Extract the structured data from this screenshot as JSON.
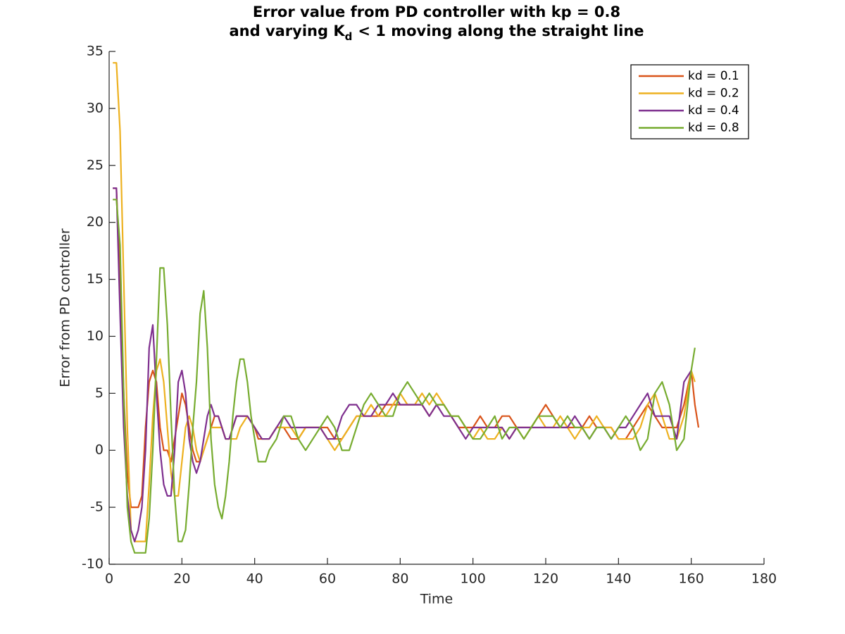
{
  "chart_data": {
    "type": "line",
    "title": {
      "line1": "Error value from PD controller with kp = 0.8",
      "line2": [
        "and varying K",
        "d",
        "< 1 moving along the straight line"
      ]
    },
    "xlabel": "Time",
    "ylabel": "Error from PD controller",
    "xlim": [
      0,
      180
    ],
    "xticks": [
      0,
      20,
      40,
      60,
      80,
      100,
      120,
      140,
      160,
      180
    ],
    "ylim": [
      -10,
      35
    ],
    "yticks": [
      -10,
      -5,
      0,
      5,
      10,
      15,
      20,
      25,
      30,
      35
    ],
    "grid": false,
    "legend": "northeast",
    "series": [
      {
        "name": "kd = 0.1",
        "color": "#d95319",
        "x": [
          1,
          2,
          3,
          4,
          5,
          6,
          7,
          8,
          9,
          10,
          11,
          12,
          13,
          14,
          15,
          16,
          17,
          18,
          19,
          20,
          21,
          22,
          23,
          24,
          25,
          26,
          27,
          28,
          29,
          30,
          31,
          32,
          33,
          34,
          35,
          36,
          38,
          40,
          41,
          44,
          46,
          48,
          50,
          52,
          54,
          56,
          58,
          60,
          62,
          64,
          66,
          68,
          70,
          72,
          74,
          76,
          78,
          80,
          82,
          84,
          86,
          88,
          90,
          92,
          94,
          96,
          98,
          100,
          102,
          104,
          106,
          108,
          110,
          112,
          114,
          116,
          118,
          120,
          122,
          124,
          126,
          128,
          130,
          132,
          134,
          136,
          138,
          140,
          142,
          144,
          146,
          148,
          150,
          152,
          154,
          156,
          158,
          160,
          161,
          162
        ],
        "values": [
          23,
          23,
          15,
          5,
          -2,
          -5,
          -5,
          -5,
          -4,
          2,
          6,
          7,
          6,
          2,
          0,
          0,
          -1,
          1,
          3,
          5,
          4,
          2,
          0,
          -1,
          -1,
          0,
          1,
          2,
          3,
          3,
          2,
          1,
          1,
          2,
          3,
          3,
          3,
          2,
          1,
          1,
          2,
          2,
          1,
          1,
          2,
          2,
          2,
          2,
          1,
          1,
          2,
          3,
          3,
          3,
          3,
          4,
          4,
          4,
          4,
          4,
          4,
          3,
          4,
          4,
          3,
          2,
          2,
          2,
          3,
          2,
          2,
          3,
          3,
          2,
          2,
          2,
          3,
          4,
          3,
          2,
          2,
          2,
          2,
          3,
          2,
          2,
          2,
          1,
          1,
          2,
          3,
          4,
          3,
          2,
          2,
          2,
          4,
          7,
          4,
          2
        ]
      },
      {
        "name": "kd = 0.2",
        "color": "#edb120",
        "x": [
          1,
          2,
          3,
          4,
          5,
          6,
          7,
          8,
          9,
          10,
          11,
          12,
          13,
          14,
          15,
          16,
          17,
          18,
          19,
          20,
          21,
          22,
          23,
          24,
          25,
          26,
          27,
          28,
          29,
          30,
          31,
          32,
          33,
          34,
          35,
          36,
          38,
          40,
          42,
          44,
          46,
          48,
          50,
          52,
          54,
          56,
          58,
          60,
          62,
          64,
          66,
          68,
          70,
          72,
          74,
          76,
          78,
          80,
          82,
          84,
          86,
          88,
          90,
          92,
          94,
          96,
          98,
          100,
          102,
          104,
          106,
          108,
          110,
          112,
          114,
          116,
          118,
          120,
          122,
          124,
          126,
          128,
          130,
          132,
          134,
          136,
          138,
          140,
          142,
          144,
          146,
          148,
          150,
          152,
          154,
          156,
          158,
          160,
          161
        ],
        "values": [
          34,
          34,
          28,
          15,
          2,
          -7,
          -8,
          -8,
          -8,
          -8,
          -3,
          3,
          7,
          8,
          6,
          2,
          -2,
          -4,
          -4,
          -1,
          2,
          3,
          2,
          0,
          -1,
          0,
          1,
          2,
          2,
          2,
          2,
          1,
          1,
          1,
          1,
          2,
          3,
          2,
          1,
          1,
          2,
          2,
          2,
          1,
          2,
          2,
          2,
          1,
          0,
          1,
          2,
          3,
          3,
          4,
          3,
          3,
          4,
          5,
          4,
          4,
          5,
          4,
          5,
          4,
          3,
          3,
          2,
          1,
          2,
          1,
          1,
          2,
          1,
          2,
          1,
          2,
          3,
          2,
          2,
          3,
          2,
          1,
          2,
          2,
          3,
          2,
          2,
          1,
          1,
          1,
          2,
          4,
          5,
          3,
          1,
          1,
          3,
          7,
          6
        ]
      },
      {
        "name": "kd = 0.4",
        "color": "#7e2f8e",
        "x": [
          1,
          2,
          3,
          4,
          5,
          6,
          7,
          8,
          9,
          10,
          11,
          12,
          13,
          14,
          15,
          16,
          17,
          18,
          19,
          20,
          21,
          22,
          23,
          24,
          25,
          26,
          27,
          28,
          29,
          30,
          31,
          32,
          33,
          34,
          35,
          36,
          38,
          40,
          42,
          44,
          46,
          48,
          50,
          52,
          54,
          56,
          58,
          60,
          62,
          64,
          66,
          68,
          70,
          72,
          74,
          76,
          78,
          80,
          82,
          84,
          86,
          88,
          90,
          92,
          94,
          96,
          98,
          100,
          102,
          104,
          106,
          108,
          110,
          112,
          114,
          116,
          118,
          120,
          122,
          124,
          126,
          128,
          130,
          132,
          134,
          136,
          138,
          140,
          142,
          144,
          146,
          148,
          150,
          152,
          154,
          156,
          158,
          160
        ],
        "values": [
          23,
          23,
          12,
          2,
          -4,
          -7,
          -8,
          -7,
          -5,
          0,
          9,
          11,
          5,
          0,
          -3,
          -4,
          -4,
          0,
          6,
          7,
          5,
          1,
          -1,
          -2,
          -1,
          1,
          3,
          4,
          3,
          3,
          2,
          1,
          1,
          2,
          3,
          3,
          3,
          2,
          1,
          1,
          2,
          3,
          2,
          2,
          2,
          2,
          2,
          1,
          1,
          3,
          4,
          4,
          3,
          3,
          4,
          4,
          5,
          4,
          4,
          4,
          4,
          3,
          4,
          3,
          3,
          2,
          1,
          2,
          2,
          2,
          2,
          2,
          1,
          2,
          2,
          2,
          2,
          2,
          2,
          2,
          2,
          3,
          2,
          1,
          2,
          2,
          1,
          2,
          2,
          3,
          4,
          5,
          3,
          3,
          3,
          1,
          6,
          7
        ]
      },
      {
        "name": "kd = 0.8",
        "color": "#77ac30",
        "x": [
          1,
          2,
          3,
          4,
          5,
          6,
          7,
          8,
          9,
          10,
          11,
          12,
          13,
          14,
          15,
          16,
          17,
          18,
          19,
          20,
          21,
          22,
          23,
          24,
          25,
          26,
          27,
          28,
          29,
          30,
          31,
          32,
          33,
          34,
          35,
          36,
          37,
          38,
          39,
          40,
          41,
          42,
          43,
          44,
          46,
          48,
          50,
          52,
          54,
          56,
          58,
          60,
          62,
          64,
          66,
          68,
          70,
          72,
          74,
          76,
          78,
          80,
          82,
          84,
          86,
          88,
          90,
          92,
          94,
          96,
          98,
          100,
          102,
          104,
          106,
          108,
          110,
          112,
          114,
          116,
          118,
          120,
          122,
          124,
          126,
          128,
          130,
          132,
          134,
          136,
          138,
          140,
          142,
          144,
          146,
          148,
          150,
          152,
          154,
          156,
          158,
          160,
          161
        ],
        "values": [
          22,
          22,
          18,
          5,
          -5,
          -8,
          -9,
          -9,
          -9,
          -9,
          -6,
          0,
          8,
          16,
          16,
          11,
          3,
          -4,
          -8,
          -8,
          -7,
          -3,
          2,
          6,
          12,
          14,
          9,
          1,
          -3,
          -5,
          -6,
          -4,
          -1,
          3,
          6,
          8,
          8,
          6,
          3,
          1,
          -1,
          -1,
          -1,
          0,
          1,
          3,
          3,
          1,
          0,
          1,
          2,
          3,
          2,
          0,
          0,
          2,
          4,
          5,
          4,
          3,
          3,
          5,
          6,
          5,
          4,
          5,
          4,
          4,
          3,
          3,
          2,
          1,
          1,
          2,
          3,
          1,
          2,
          2,
          1,
          2,
          3,
          3,
          3,
          2,
          3,
          2,
          2,
          1,
          2,
          2,
          1,
          2,
          3,
          2,
          0,
          1,
          5,
          6,
          4,
          0,
          1,
          7,
          9
        ]
      }
    ]
  }
}
